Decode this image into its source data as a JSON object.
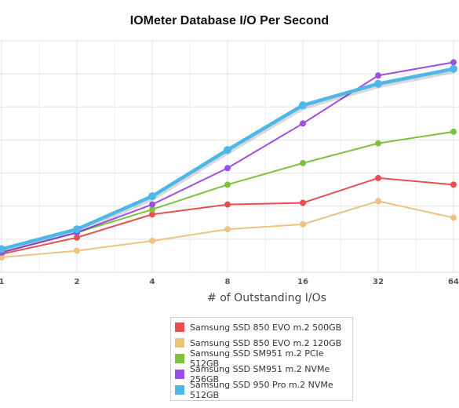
{
  "chart_data": {
    "type": "line",
    "title": "IOMeter Database I/O Per Second",
    "xlabel": "# of Outstanding I/Os",
    "ylabel": "",
    "x": [
      "1",
      "2",
      "4",
      "8",
      "16",
      "32",
      "64"
    ],
    "ylim": [
      0,
      7
    ],
    "grid": true,
    "legend": "bottom-center",
    "series": [
      {
        "name": "Samsung SSD 850 EVO m.2 500GB",
        "color": "#e8504f",
        "values": [
          0.55,
          1.05,
          1.75,
          2.05,
          2.1,
          2.85,
          2.65
        ]
      },
      {
        "name": "Samsung SSD 850 EVO m.2 120GB",
        "color": "#eec27f",
        "values": [
          0.45,
          0.65,
          0.95,
          1.3,
          1.45,
          2.15,
          1.65
        ]
      },
      {
        "name": "Samsung SSD SM951 m.2 PCIe 512GB",
        "color": "#7dc23f",
        "values": [
          0.6,
          1.2,
          1.9,
          2.65,
          3.3,
          3.9,
          4.25
        ]
      },
      {
        "name": "Samsung SSD SM951 m.2 NVMe 256GB",
        "color": "#9e4fe3",
        "values": [
          0.6,
          1.2,
          2.05,
          3.15,
          4.5,
          5.95,
          6.35
        ]
      },
      {
        "name": "Samsung SSD 950 Pro m.2 NVMe 512GB",
        "color": "#4db8e8",
        "values": [
          0.7,
          1.3,
          2.3,
          3.7,
          5.05,
          5.7,
          6.15
        ]
      }
    ]
  }
}
